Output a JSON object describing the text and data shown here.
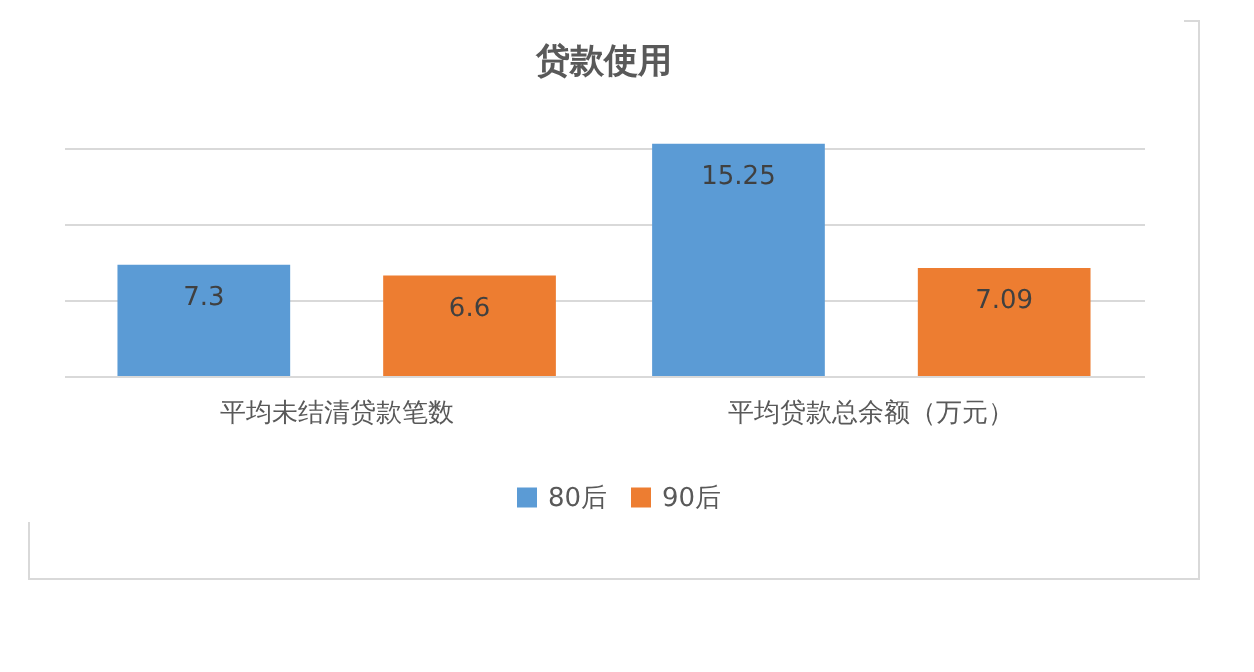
{
  "chart_data": {
    "type": "bar",
    "title": "贷款使用",
    "categories": [
      "平均未结清贷款笔数",
      "平均贷款总余额（万元）"
    ],
    "series": [
      {
        "name": "80后",
        "color": "#5b9bd5",
        "values": [
          7.3,
          15.25
        ]
      },
      {
        "name": "90后",
        "color": "#ed7d31",
        "values": [
          6.6,
          7.09
        ]
      }
    ],
    "ylim": [
      0,
      15.5
    ],
    "yticks": [
      {
        "value": 0,
        "label": null
      },
      {
        "value": 5,
        "label": null
      },
      {
        "value": 10,
        "label": null
      },
      {
        "value": 15,
        "label": null
      }
    ],
    "grid": "y",
    "tick_labels": "x",
    "legend": "bottom",
    "data_labels": true
  }
}
